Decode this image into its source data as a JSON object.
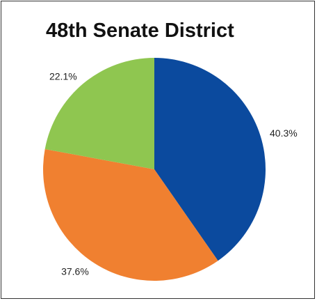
{
  "chart_data": {
    "type": "pie",
    "title": "48th Senate District",
    "categories": [
      "",
      "",
      ""
    ],
    "values": [
      40.3,
      37.6,
      22.1
    ],
    "labels": [
      "40.3%",
      "37.6%",
      "22.1%"
    ],
    "colors": [
      "#0b4a9e",
      "#f08030",
      "#8fc650"
    ],
    "start_angle_deg": 0,
    "direction": "clockwise",
    "legend": "none"
  }
}
